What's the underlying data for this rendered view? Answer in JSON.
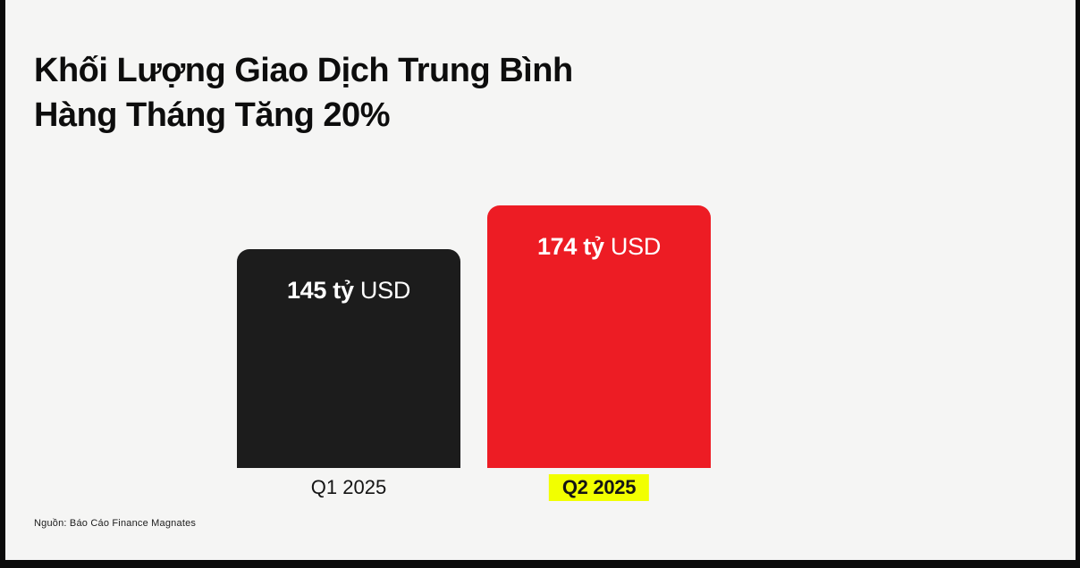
{
  "page": {
    "background_color": "#f5f5f4",
    "frame_border_color": "#0b0b0b"
  },
  "title": {
    "line1": "Khối Lượng Giao Dịch Trung Bình",
    "line2": "Hàng Tháng Tăng 20%"
  },
  "source": {
    "text": "Nguồn: Báo Cáo Finance Magnates"
  },
  "chart_data": {
    "type": "bar",
    "title": "Khối Lượng Giao Dịch Trung Bình Hàng Tháng Tăng 20%",
    "categories": [
      "Q1 2025",
      "Q2 2025"
    ],
    "values": [
      145,
      174
    ],
    "unit": "tỷ USD",
    "xlabel": "",
    "ylabel": "",
    "ylim": [
      0,
      174
    ],
    "grid": false,
    "legend": false,
    "bars": [
      {
        "category": "Q1 2025",
        "value": 145,
        "value_label": "145 tỷ",
        "unit_label": "USD",
        "color": "#1c1c1c",
        "category_highlighted": false
      },
      {
        "category": "Q2 2025",
        "value": 174,
        "value_label": "174 tỷ",
        "unit_label": "USD",
        "color": "#ed1c24",
        "category_highlighted": true
      }
    ],
    "highlight_color": "#f2ff00",
    "value_label_text_color": "#ffffff"
  }
}
